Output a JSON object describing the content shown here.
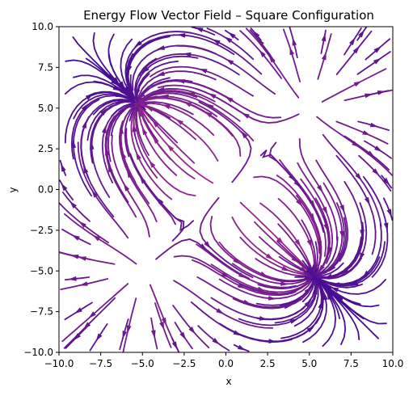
{
  "chart_data": {
    "type": "streamplot",
    "title": "Energy Flow Vector Field – Square Configuration",
    "xlabel": "x",
    "ylabel": "y",
    "xlim": [
      -10,
      10
    ],
    "ylim": [
      -10,
      10
    ],
    "xticks": [
      "−10.0",
      "−7.5",
      "−5.0",
      "−2.5",
      "0.0",
      "2.5",
      "5.0",
      "7.5",
      "10.0"
    ],
    "yticks": [
      "−10.0",
      "−7.5",
      "−5.0",
      "−2.5",
      "0.0",
      "2.5",
      "5.0",
      "7.5",
      "10.0"
    ],
    "grid": false,
    "colormap": "plasma",
    "colors": {
      "low": "#2c0594",
      "mid": "#b93289",
      "high": "#fca636"
    },
    "sources": [
      {
        "x": -5,
        "y": 5,
        "sign": -1
      },
      {
        "x": 5,
        "y": 5,
        "sign": 1
      },
      {
        "x": 5,
        "y": -5,
        "sign": -1
      },
      {
        "x": -5,
        "y": -5,
        "sign": 1
      },
      {
        "x": 0,
        "y": 0,
        "sign": 1
      }
    ]
  }
}
